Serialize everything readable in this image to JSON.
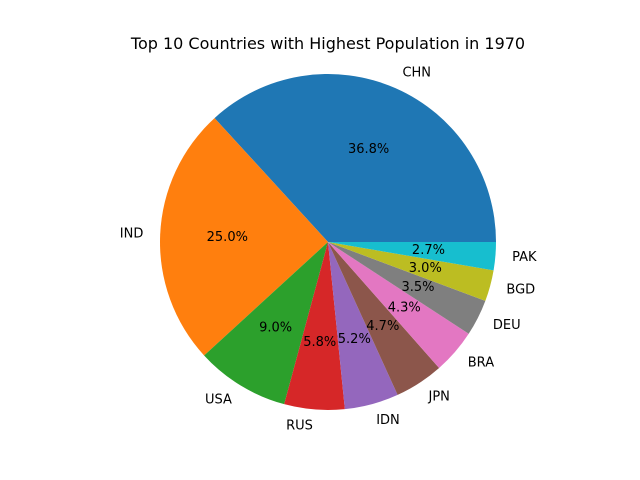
{
  "chart_data": {
    "type": "pie",
    "title": "Top 10 Countries with Highest Population in 1970",
    "slices": [
      {
        "label": "CHN",
        "value": 36.8,
        "pct_label": "36.8%",
        "color": "#1f77b4"
      },
      {
        "label": "IND",
        "value": 25.0,
        "pct_label": "25.0%",
        "color": "#ff7f0e"
      },
      {
        "label": "USA",
        "value": 9.0,
        "pct_label": "9.0%",
        "color": "#2ca02c"
      },
      {
        "label": "RUS",
        "value": 5.8,
        "pct_label": "5.8%",
        "color": "#d62728"
      },
      {
        "label": "IDN",
        "value": 5.2,
        "pct_label": "5.2%",
        "color": "#9467bd"
      },
      {
        "label": "JPN",
        "value": 4.7,
        "pct_label": "4.7%",
        "color": "#8c564b"
      },
      {
        "label": "BRA",
        "value": 4.3,
        "pct_label": "4.3%",
        "color": "#e377c2"
      },
      {
        "label": "DEU",
        "value": 3.5,
        "pct_label": "3.5%",
        "color": "#7f7f7f"
      },
      {
        "label": "BGD",
        "value": 3.0,
        "pct_label": "3.0%",
        "color": "#bcbd22"
      },
      {
        "label": "PAK",
        "value": 2.7,
        "pct_label": "2.7%",
        "color": "#17becf"
      }
    ]
  }
}
